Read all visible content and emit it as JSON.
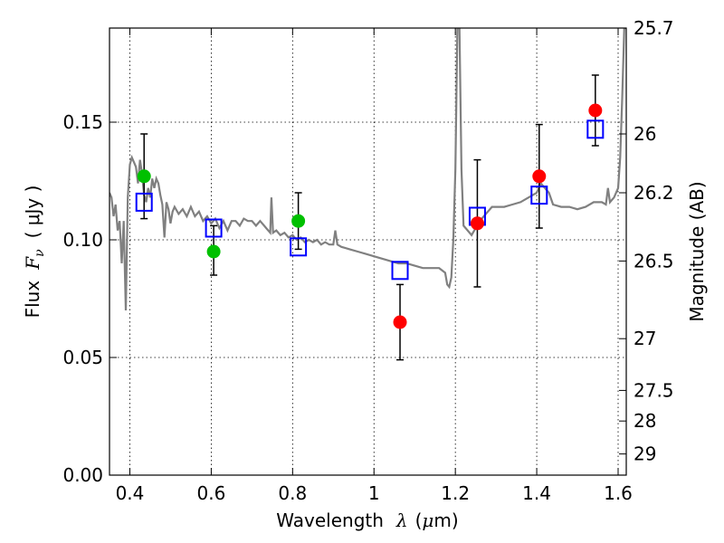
{
  "chart_data": {
    "type": "scatter",
    "xlabel_text": "Wavelength",
    "xlabel_symbol": "λ",
    "xlabel_unit_open": "(",
    "xlabel_unit_mu": "μ",
    "xlabel_unit_rest": "m)",
    "ylabel_text": "Flux",
    "ylabel_symbol": "F",
    "ylabel_sub": "ν",
    "ylabel_unit": "( μJy )",
    "y2label": "Magnitude (AB)",
    "xlim": [
      0.35,
      1.62
    ],
    "ylim": [
      0.0,
      0.19
    ],
    "grid": true,
    "xticks": [
      {
        "value": 0.4,
        "label": "0.4"
      },
      {
        "value": 0.6,
        "label": "0.6"
      },
      {
        "value": 0.8,
        "label": "0.8"
      },
      {
        "value": 1.0,
        "label": "1"
      },
      {
        "value": 1.2,
        "label": "1.2"
      },
      {
        "value": 1.4,
        "label": "1.4"
      },
      {
        "value": 1.6,
        "label": "1.6"
      }
    ],
    "yticks": [
      {
        "value": 0.0,
        "label": "0.00"
      },
      {
        "value": 0.05,
        "label": "0.05"
      },
      {
        "value": 0.1,
        "label": "0.10"
      },
      {
        "value": 0.15,
        "label": "0.15"
      }
    ],
    "y2ticks": [
      {
        "flux": 0.19,
        "label": "25.7"
      },
      {
        "flux": 0.145,
        "label": "26"
      },
      {
        "flux": 0.12,
        "label": "26.2"
      },
      {
        "flux": 0.091,
        "label": "26.5"
      },
      {
        "flux": 0.058,
        "label": "27"
      },
      {
        "flux": 0.036,
        "label": "27.5"
      },
      {
        "flux": 0.023,
        "label": "28"
      },
      {
        "flux": 0.009,
        "label": "29"
      }
    ],
    "template_color": "#808080",
    "template_spectrum": [
      [
        0.35,
        0.12
      ],
      [
        0.355,
        0.118
      ],
      [
        0.36,
        0.11
      ],
      [
        0.365,
        0.115
      ],
      [
        0.37,
        0.104
      ],
      [
        0.375,
        0.108
      ],
      [
        0.38,
        0.09
      ],
      [
        0.385,
        0.108
      ],
      [
        0.39,
        0.07
      ],
      [
        0.395,
        0.118
      ],
      [
        0.4,
        0.132
      ],
      [
        0.405,
        0.135
      ],
      [
        0.41,
        0.133
      ],
      [
        0.415,
        0.131
      ],
      [
        0.42,
        0.124
      ],
      [
        0.425,
        0.134
      ],
      [
        0.43,
        0.128
      ],
      [
        0.435,
        0.119
      ],
      [
        0.44,
        0.116
      ],
      [
        0.445,
        0.122
      ],
      [
        0.45,
        0.118
      ],
      [
        0.455,
        0.126
      ],
      [
        0.46,
        0.122
      ],
      [
        0.465,
        0.126
      ],
      [
        0.47,
        0.124
      ],
      [
        0.475,
        0.119
      ],
      [
        0.48,
        0.115
      ],
      [
        0.485,
        0.101
      ],
      [
        0.49,
        0.116
      ],
      [
        0.495,
        0.113
      ],
      [
        0.5,
        0.107
      ],
      [
        0.505,
        0.112
      ],
      [
        0.51,
        0.114
      ],
      [
        0.52,
        0.111
      ],
      [
        0.53,
        0.113
      ],
      [
        0.54,
        0.11
      ],
      [
        0.55,
        0.114
      ],
      [
        0.56,
        0.11
      ],
      [
        0.57,
        0.112
      ],
      [
        0.58,
        0.108
      ],
      [
        0.59,
        0.11
      ],
      [
        0.6,
        0.107
      ],
      [
        0.61,
        0.109
      ],
      [
        0.62,
        0.105
      ],
      [
        0.63,
        0.108
      ],
      [
        0.64,
        0.104
      ],
      [
        0.65,
        0.108
      ],
      [
        0.66,
        0.108
      ],
      [
        0.67,
        0.106
      ],
      [
        0.68,
        0.109
      ],
      [
        0.69,
        0.108
      ],
      [
        0.7,
        0.108
      ],
      [
        0.71,
        0.106
      ],
      [
        0.72,
        0.108
      ],
      [
        0.73,
        0.106
      ],
      [
        0.74,
        0.104
      ],
      [
        0.745,
        0.103
      ],
      [
        0.748,
        0.118
      ],
      [
        0.752,
        0.103
      ],
      [
        0.76,
        0.104
      ],
      [
        0.77,
        0.102
      ],
      [
        0.78,
        0.103
      ],
      [
        0.79,
        0.101
      ],
      [
        0.8,
        0.102
      ],
      [
        0.81,
        0.1
      ],
      [
        0.82,
        0.101
      ],
      [
        0.83,
        0.099
      ],
      [
        0.84,
        0.1
      ],
      [
        0.85,
        0.099
      ],
      [
        0.86,
        0.1
      ],
      [
        0.87,
        0.098
      ],
      [
        0.88,
        0.099
      ],
      [
        0.89,
        0.098
      ],
      [
        0.9,
        0.098
      ],
      [
        0.905,
        0.104
      ],
      [
        0.91,
        0.098
      ],
      [
        0.92,
        0.097
      ],
      [
        0.94,
        0.096
      ],
      [
        0.96,
        0.095
      ],
      [
        0.98,
        0.094
      ],
      [
        1.0,
        0.093
      ],
      [
        1.02,
        0.092
      ],
      [
        1.04,
        0.091
      ],
      [
        1.06,
        0.09
      ],
      [
        1.08,
        0.09
      ],
      [
        1.1,
        0.089
      ],
      [
        1.12,
        0.088
      ],
      [
        1.14,
        0.088
      ],
      [
        1.16,
        0.088
      ],
      [
        1.175,
        0.086
      ],
      [
        1.18,
        0.081
      ],
      [
        1.185,
        0.08
      ],
      [
        1.19,
        0.084
      ],
      [
        1.195,
        0.1
      ],
      [
        1.2,
        0.13
      ],
      [
        1.205,
        0.19
      ],
      [
        1.21,
        0.19
      ],
      [
        1.215,
        0.13
      ],
      [
        1.22,
        0.106
      ],
      [
        1.23,
        0.104
      ],
      [
        1.24,
        0.102
      ],
      [
        1.25,
        0.105
      ],
      [
        1.26,
        0.108
      ],
      [
        1.27,
        0.11
      ],
      [
        1.28,
        0.112
      ],
      [
        1.29,
        0.114
      ],
      [
        1.3,
        0.114
      ],
      [
        1.32,
        0.114
      ],
      [
        1.34,
        0.115
      ],
      [
        1.36,
        0.116
      ],
      [
        1.38,
        0.118
      ],
      [
        1.4,
        0.12
      ],
      [
        1.41,
        0.124
      ],
      [
        1.42,
        0.122
      ],
      [
        1.43,
        0.12
      ],
      [
        1.44,
        0.115
      ],
      [
        1.46,
        0.114
      ],
      [
        1.48,
        0.114
      ],
      [
        1.5,
        0.113
      ],
      [
        1.52,
        0.114
      ],
      [
        1.54,
        0.116
      ],
      [
        1.56,
        0.116
      ],
      [
        1.57,
        0.115
      ],
      [
        1.575,
        0.122
      ],
      [
        1.58,
        0.116
      ],
      [
        1.59,
        0.118
      ],
      [
        1.6,
        0.122
      ],
      [
        1.605,
        0.135
      ],
      [
        1.61,
        0.16
      ],
      [
        1.615,
        0.19
      ],
      [
        1.62,
        0.19
      ]
    ],
    "series": [
      {
        "marker": "square-open",
        "color": "#0000ff",
        "points": [
          {
            "x": 0.435,
            "y": 0.116
          },
          {
            "x": 0.606,
            "y": 0.105
          },
          {
            "x": 0.814,
            "y": 0.097
          },
          {
            "x": 1.064,
            "y": 0.087
          },
          {
            "x": 1.254,
            "y": 0.11
          },
          {
            "x": 1.406,
            "y": 0.119
          },
          {
            "x": 1.544,
            "y": 0.147
          }
        ]
      },
      {
        "marker": "circle",
        "color": "#00c000",
        "points": [
          {
            "x": 0.435,
            "y": 0.127,
            "yerr_low": 0.109,
            "yerr_high": 0.145
          },
          {
            "x": 0.606,
            "y": 0.095,
            "yerr_low": 0.085,
            "yerr_high": 0.106
          },
          {
            "x": 0.814,
            "y": 0.108,
            "yerr_low": 0.096,
            "yerr_high": 0.12
          }
        ]
      },
      {
        "marker": "circle",
        "color": "#ff0000",
        "points": [
          {
            "x": 1.064,
            "y": 0.065,
            "yerr_low": 0.049,
            "yerr_high": 0.081
          },
          {
            "x": 1.254,
            "y": 0.107,
            "yerr_low": 0.08,
            "yerr_high": 0.134
          },
          {
            "x": 1.406,
            "y": 0.127,
            "yerr_low": 0.105,
            "yerr_high": 0.149
          },
          {
            "x": 1.544,
            "y": 0.155,
            "yerr_low": 0.14,
            "yerr_high": 0.17
          }
        ]
      }
    ]
  }
}
